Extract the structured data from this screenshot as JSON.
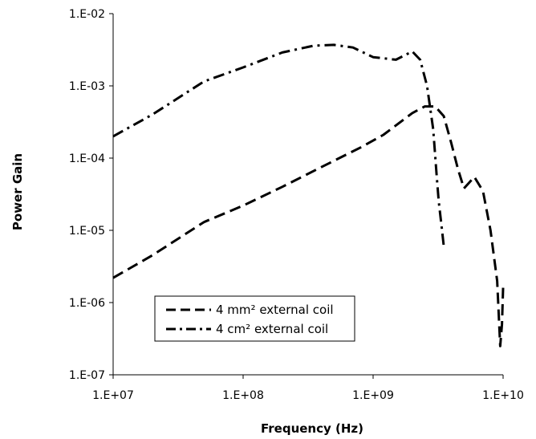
{
  "chart_data": {
    "type": "line",
    "title": "",
    "xlabel": "Frequency (Hz)",
    "ylabel": "Power Gain",
    "x_scale": "log",
    "y_scale": "log",
    "xlim": [
      10000000,
      10000000000
    ],
    "ylim": [
      1e-07,
      0.01
    ],
    "x_tick_values": [
      10000000,
      100000000,
      1000000000,
      10000000000
    ],
    "x_tick_labels": [
      "1.E+07",
      "1.E+08",
      "1.E+09",
      "1.E+10"
    ],
    "y_tick_values": [
      1e-07,
      1e-06,
      1e-05,
      0.0001,
      0.001,
      0.01
    ],
    "y_tick_labels": [
      "1.E-07",
      "1.E-06",
      "1.E-05",
      "1.E-04",
      "1.E-03",
      "1.E-02"
    ],
    "grid": false,
    "legend_position": "bottom-left",
    "series": [
      {
        "name": "4 mm² external coil",
        "style": "dashed",
        "color": "#000000",
        "x": [
          10000000,
          20000000,
          50000000,
          100000000,
          200000000,
          400000000,
          800000000,
          1200000000,
          2000000000,
          2500000000,
          3000000000,
          3500000000,
          4000000000,
          4500000000,
          5000000000,
          5500000000,
          6000000000,
          7000000000,
          8000000000,
          9000000000,
          9500000000,
          9800000000,
          10000000000
        ],
        "y": [
          2.2e-06,
          4.5e-06,
          1.3e-05,
          2.2e-05,
          4e-05,
          7.5e-05,
          0.00014,
          0.00021,
          0.00042,
          0.00052,
          0.00052,
          0.00038,
          0.00016,
          7e-05,
          3.8e-05,
          4.6e-05,
          5.5e-05,
          3.5e-05,
          1e-05,
          2e-06,
          2.5e-07,
          5e-07,
          1.6e-06
        ]
      },
      {
        "name": "4 cm² external coil",
        "style": "dash-dot",
        "color": "#000000",
        "x": [
          10000000,
          20000000,
          50000000,
          100000000,
          200000000,
          350000000,
          500000000,
          700000000,
          1000000000,
          1500000000,
          2000000000,
          2300000000,
          2600000000,
          2900000000,
          3000000000,
          3100000000,
          3200000000,
          3350000000,
          3500000000,
          3600000000
        ],
        "y": [
          0.0002,
          0.0004,
          0.00115,
          0.0018,
          0.0029,
          0.0036,
          0.0037,
          0.0034,
          0.0025,
          0.0023,
          0.003,
          0.0023,
          0.001,
          0.00025,
          0.00011,
          5e-05,
          2.5e-05,
          1.2e-05,
          6e-06,
          5.5e-06
        ]
      }
    ]
  }
}
